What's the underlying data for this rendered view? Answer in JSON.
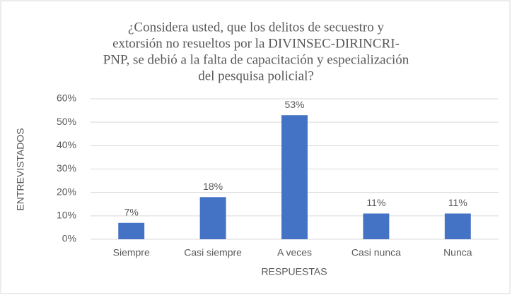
{
  "chart_data": {
    "type": "bar",
    "title": [
      "¿Considera usted, que los delitos de secuestro y",
      "extorsión no resueltos por la DIVINSEC-DIRINCRI-",
      "PNP, se debió a la falta de capacitación y especialización",
      "del pesquisa policial?"
    ],
    "x_label": "RESPUESTAS",
    "y_label": "ENTREVISTADOS",
    "categories": [
      "Siempre",
      "Casi siempre",
      "A veces",
      "Casi nunca",
      "Nunca"
    ],
    "values": [
      7,
      18,
      53,
      11,
      11
    ],
    "value_labels": [
      "7%",
      "18%",
      "53%",
      "11%",
      "11%"
    ],
    "color": "#4472c4",
    "ylim": [
      0,
      60
    ],
    "yticks": [
      {
        "value": 0,
        "label": "0%"
      },
      {
        "value": 10,
        "label": "10%"
      },
      {
        "value": 20,
        "label": "20%"
      },
      {
        "value": 30,
        "label": "30%"
      },
      {
        "value": 40,
        "label": "40%"
      },
      {
        "value": 50,
        "label": "50%"
      },
      {
        "value": 60,
        "label": "60%"
      }
    ],
    "grid": true
  }
}
